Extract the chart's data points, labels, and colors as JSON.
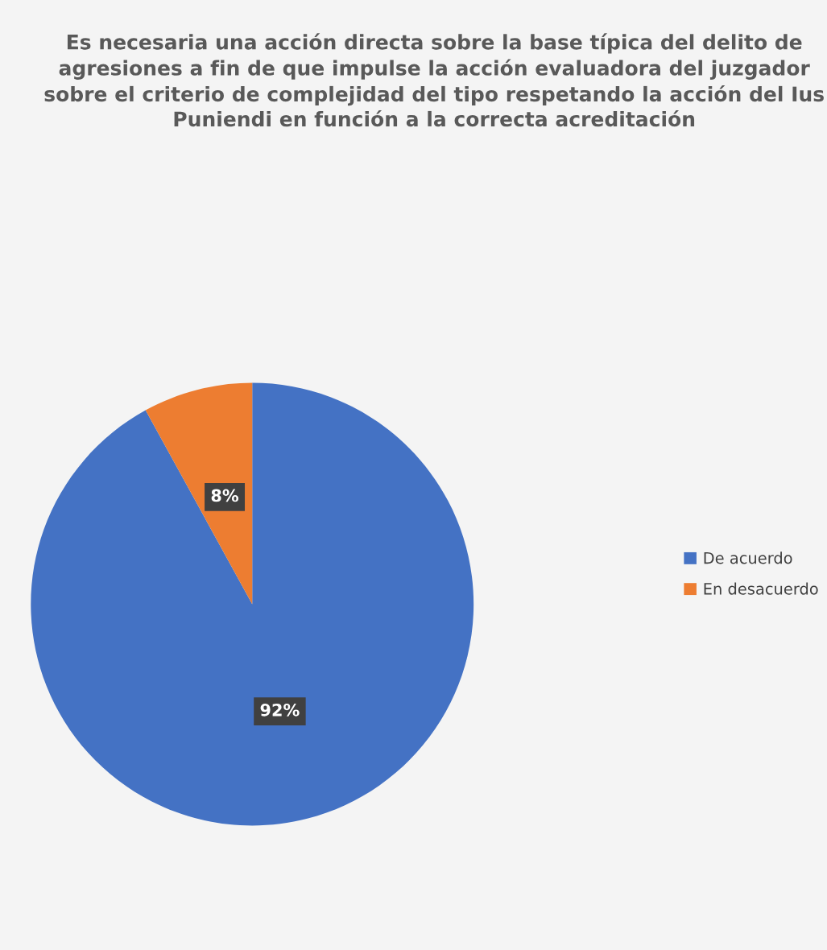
{
  "chart_data": {
    "type": "pie",
    "title": "Es necesaria una acción directa sobre la base típica del delito de agresiones a fin de que impulse la acción evaluadora del juzgador sobre el criterio de complejidad del tipo respetando la acción del Ius Puniendi en función a la correcta acreditación",
    "categories": [
      "De acuerdo",
      "En desacuerdo"
    ],
    "values": [
      92,
      8
    ],
    "colors": [
      "#4472c4",
      "#ed7d31"
    ],
    "value_labels": [
      "92%",
      "8%"
    ],
    "legend": "right"
  }
}
